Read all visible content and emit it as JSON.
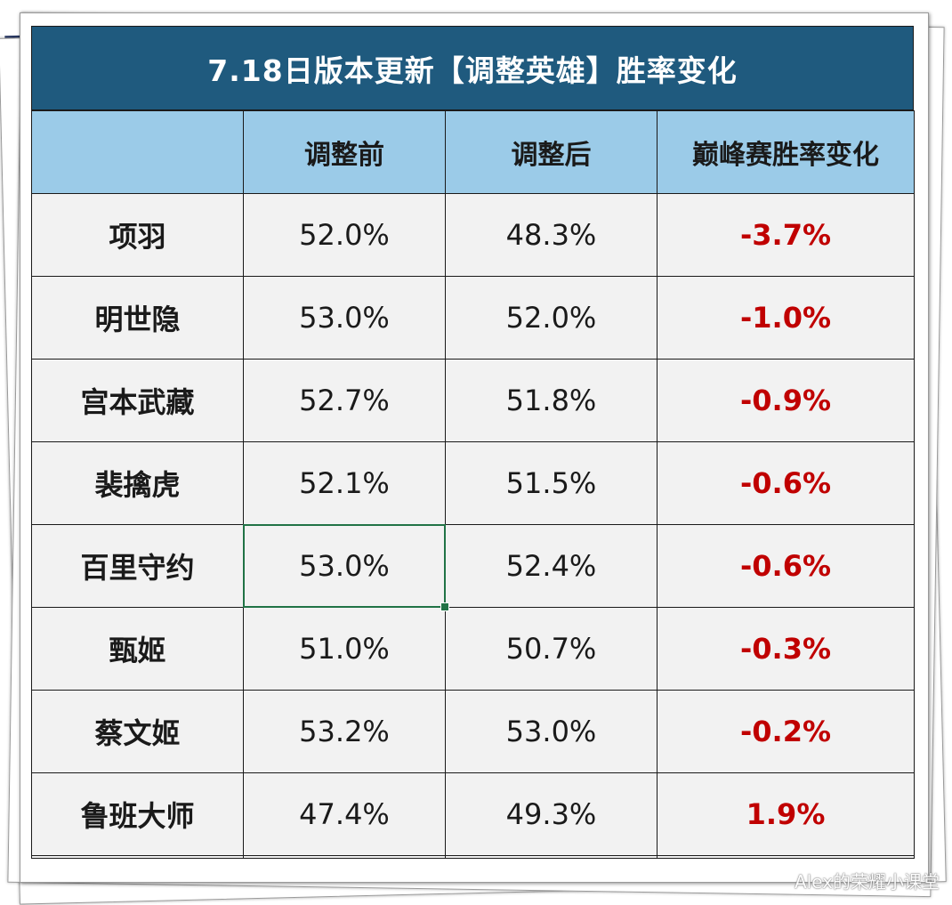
{
  "title": "7.18日版本更新【调整英雄】胜率变化",
  "headers": [
    "",
    "调整前",
    "调整后",
    "巅峰赛胜率变化"
  ],
  "rows": [
    {
      "hero": "项羽",
      "before": "52.0%",
      "after": "48.3%",
      "delta": "-3.7%"
    },
    {
      "hero": "明世隐",
      "before": "53.0%",
      "after": "52.0%",
      "delta": "-1.0%"
    },
    {
      "hero": "宫本武藏",
      "before": "52.7%",
      "after": "51.8%",
      "delta": "-0.9%"
    },
    {
      "hero": "裴擒虎",
      "before": "52.1%",
      "after": "51.5%",
      "delta": "-0.6%"
    },
    {
      "hero": "百里守约",
      "before": "53.0%",
      "after": "52.4%",
      "delta": "-0.6%"
    },
    {
      "hero": "甄姬",
      "before": "51.0%",
      "after": "50.7%",
      "delta": "-0.3%"
    },
    {
      "hero": "蔡文姬",
      "before": "53.2%",
      "after": "53.0%",
      "delta": "-0.2%"
    },
    {
      "hero": "鲁班大师",
      "before": "47.4%",
      "after": "49.3%",
      "delta": "1.9%"
    }
  ],
  "selected_cell": "百里守约 调整前",
  "watermark": "Alex的荣耀小课堂",
  "colors": {
    "title_bg": "#1f5a7e",
    "header_bg": "#9bcbe8",
    "cell_bg": "#f2f2f2",
    "delta_text": "#c00000",
    "selection": "#217346"
  }
}
